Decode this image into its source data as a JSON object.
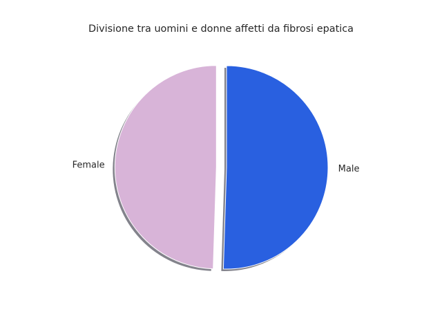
{
  "chart_data": {
    "type": "pie",
    "title": "Divisione tra uomini e donne affetti da fibrosi epatica",
    "categories": [
      "Female",
      "Male"
    ],
    "values": [
      49.5,
      50.5
    ],
    "colors": [
      "#d8b4d8",
      "#2960e0"
    ],
    "exploded": "Female",
    "shadow": true,
    "legend": false
  }
}
